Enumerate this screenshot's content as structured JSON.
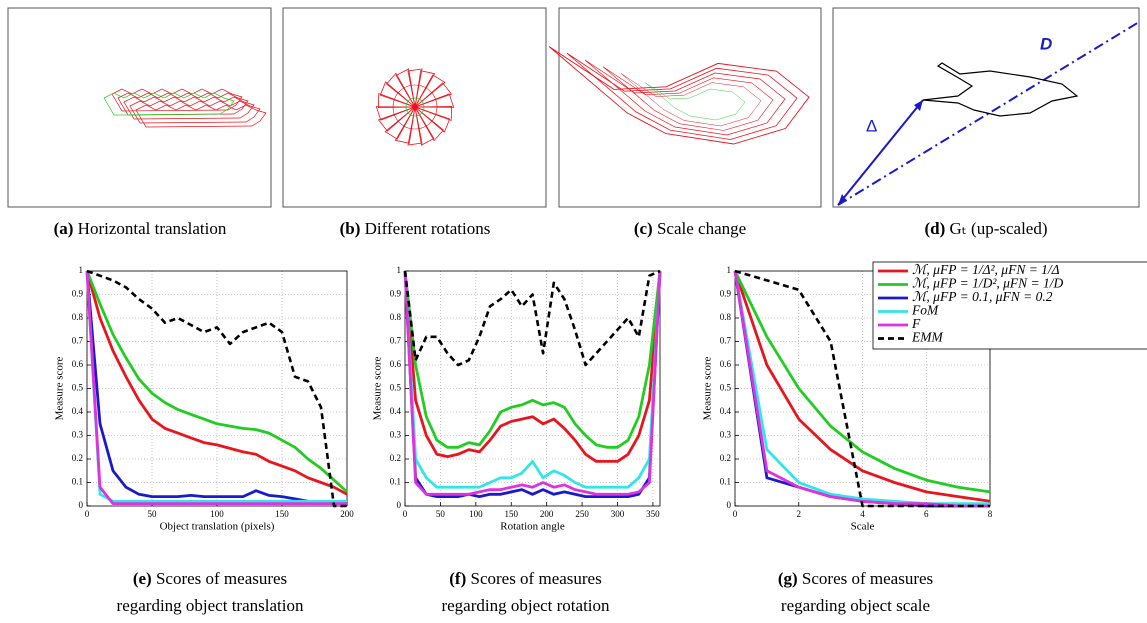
{
  "panels": [
    {
      "label": "(a)",
      "caption": "Horizontal translation"
    },
    {
      "label": "(b)",
      "caption": "Different rotations"
    },
    {
      "label": "(c)",
      "caption": "Scale change"
    },
    {
      "label": "(d)",
      "caption": "Gₜ (up-scaled)",
      "annotations": [
        "D",
        "Δ"
      ]
    }
  ],
  "chart_data": [
    {
      "type": "line",
      "label": "(e)",
      "caption": [
        "Scores of measures",
        "regarding object translation"
      ],
      "xlabel": "Object translation (pixels)",
      "ylabel": "Measure score",
      "x": [
        0,
        10,
        20,
        30,
        40,
        50,
        60,
        70,
        80,
        90,
        100,
        110,
        120,
        130,
        140,
        150,
        160,
        170,
        180,
        190,
        200
      ],
      "xlim": [
        0,
        200
      ],
      "xticks": [
        0,
        50,
        100,
        150,
        200
      ],
      "ylim": [
        0,
        1
      ],
      "yticks": [
        0,
        0.1,
        0.2,
        0.3,
        0.4,
        0.5,
        0.6,
        0.7,
        0.8,
        0.9,
        1
      ],
      "grid": true,
      "series": [
        {
          "color": "#e8141e",
          "values": [
            1,
            0.8,
            0.66,
            0.55,
            0.45,
            0.37,
            0.33,
            0.31,
            0.29,
            0.27,
            0.26,
            0.245,
            0.23,
            0.22,
            0.19,
            0.17,
            0.15,
            0.12,
            0.1,
            0.08,
            0.05
          ]
        },
        {
          "color": "#22cc22",
          "values": [
            1,
            0.86,
            0.73,
            0.63,
            0.54,
            0.48,
            0.44,
            0.41,
            0.39,
            0.37,
            0.35,
            0.34,
            0.33,
            0.325,
            0.31,
            0.28,
            0.25,
            0.2,
            0.16,
            0.11,
            0.06
          ]
        },
        {
          "color": "#1a1acc",
          "values": [
            1,
            0.35,
            0.15,
            0.08,
            0.05,
            0.04,
            0.04,
            0.04,
            0.045,
            0.04,
            0.04,
            0.04,
            0.04,
            0.065,
            0.045,
            0.04,
            0.03,
            0.02,
            0.015,
            0.01,
            0.01
          ]
        },
        {
          "color": "#33e6e6",
          "values": [
            1,
            0.05,
            0.02,
            0.02,
            0.02,
            0.02,
            0.02,
            0.02,
            0.02,
            0.02,
            0.02,
            0.02,
            0.02,
            0.02,
            0.02,
            0.02,
            0.02,
            0.02,
            0.02,
            0.02,
            0.02
          ]
        },
        {
          "color": "#dd33dd",
          "values": [
            1,
            0.08,
            0.01,
            0.01,
            0.01,
            0.01,
            0.01,
            0.01,
            0.01,
            0.01,
            0.01,
            0.01,
            0.01,
            0.01,
            0.01,
            0.01,
            0.01,
            0.01,
            0.01,
            0.01,
            0.01
          ]
        },
        {
          "color": "#000000",
          "dashed": true,
          "values": [
            1,
            0.98,
            0.96,
            0.93,
            0.88,
            0.84,
            0.78,
            0.8,
            0.77,
            0.74,
            0.76,
            0.69,
            0.74,
            0.76,
            0.78,
            0.74,
            0.55,
            0.53,
            0.42,
            0,
            0
          ]
        }
      ]
    },
    {
      "type": "line",
      "label": "(f)",
      "caption": [
        "Scores of measures",
        "regarding object rotation"
      ],
      "xlabel": "Rotation angle",
      "ylabel": "Measure score",
      "x": [
        0,
        15,
        30,
        45,
        60,
        75,
        90,
        105,
        120,
        135,
        150,
        165,
        180,
        195,
        210,
        225,
        240,
        255,
        270,
        285,
        300,
        315,
        330,
        345,
        360
      ],
      "xlim": [
        0,
        360
      ],
      "xticks": [
        0,
        50,
        100,
        150,
        200,
        250,
        300,
        350
      ],
      "ylim": [
        0,
        1
      ],
      "yticks": [
        0,
        0.1,
        0.2,
        0.3,
        0.4,
        0.5,
        0.6,
        0.7,
        0.8,
        0.9,
        1
      ],
      "grid": true,
      "series": [
        {
          "color": "#e8141e",
          "values": [
            1,
            0.45,
            0.3,
            0.22,
            0.21,
            0.22,
            0.24,
            0.23,
            0.28,
            0.34,
            0.36,
            0.37,
            0.38,
            0.35,
            0.37,
            0.33,
            0.28,
            0.22,
            0.19,
            0.19,
            0.19,
            0.22,
            0.3,
            0.45,
            1
          ]
        },
        {
          "color": "#22cc22",
          "values": [
            1,
            0.6,
            0.38,
            0.28,
            0.25,
            0.25,
            0.27,
            0.26,
            0.32,
            0.4,
            0.42,
            0.43,
            0.45,
            0.43,
            0.44,
            0.42,
            0.35,
            0.3,
            0.26,
            0.25,
            0.25,
            0.28,
            0.38,
            0.6,
            1
          ]
        },
        {
          "color": "#1a1acc",
          "values": [
            1,
            0.12,
            0.05,
            0.04,
            0.04,
            0.04,
            0.05,
            0.04,
            0.05,
            0.05,
            0.06,
            0.07,
            0.05,
            0.07,
            0.05,
            0.06,
            0.05,
            0.04,
            0.04,
            0.04,
            0.04,
            0.04,
            0.05,
            0.12,
            1
          ]
        },
        {
          "color": "#33e6e6",
          "values": [
            1,
            0.2,
            0.12,
            0.08,
            0.08,
            0.08,
            0.08,
            0.08,
            0.1,
            0.12,
            0.12,
            0.14,
            0.19,
            0.12,
            0.15,
            0.13,
            0.1,
            0.08,
            0.08,
            0.08,
            0.08,
            0.08,
            0.12,
            0.2,
            1
          ]
        },
        {
          "color": "#dd33dd",
          "values": [
            1,
            0.1,
            0.05,
            0.05,
            0.05,
            0.05,
            0.05,
            0.06,
            0.07,
            0.07,
            0.08,
            0.09,
            0.08,
            0.1,
            0.08,
            0.09,
            0.07,
            0.06,
            0.05,
            0.05,
            0.05,
            0.05,
            0.06,
            0.1,
            1
          ]
        },
        {
          "color": "#000000",
          "dashed": true,
          "values": [
            1,
            0.62,
            0.72,
            0.72,
            0.65,
            0.6,
            0.62,
            0.72,
            0.85,
            0.88,
            0.92,
            0.85,
            0.9,
            0.65,
            0.95,
            0.88,
            0.75,
            0.6,
            0.65,
            0.7,
            0.75,
            0.8,
            0.72,
            0.98,
            1
          ]
        }
      ]
    },
    {
      "type": "line",
      "label": "(g)",
      "caption": [
        "Scores of measures",
        "regarding object scale"
      ],
      "xlabel": "Scale",
      "ylabel": "Measure score",
      "x": [
        0,
        1,
        2,
        3,
        4,
        5,
        6,
        7,
        8
      ],
      "xlim": [
        0,
        8
      ],
      "xticks": [
        0,
        2,
        4,
        6,
        8
      ],
      "ylim": [
        0,
        1
      ],
      "yticks": [
        0,
        0.1,
        0.2,
        0.3,
        0.4,
        0.5,
        0.6,
        0.7,
        0.8,
        0.9,
        1
      ],
      "grid": true,
      "legend": "top-right",
      "series": [
        {
          "name": "ℳ,  μFP = 1/Δ²,  μFN = 1/Δ",
          "color": "#e8141e",
          "values": [
            1,
            0.6,
            0.37,
            0.24,
            0.15,
            0.1,
            0.06,
            0.04,
            0.02
          ]
        },
        {
          "name": "ℳ,  μFP = 1/D²,  μFN = 1/D",
          "color": "#22cc22",
          "values": [
            1,
            0.72,
            0.5,
            0.34,
            0.23,
            0.16,
            0.11,
            0.08,
            0.06
          ]
        },
        {
          "name": "ℳ,  μFP = 0.1,  μFN = 0.2",
          "color": "#1a1acc",
          "values": [
            1,
            0.12,
            0.08,
            0.04,
            0.02,
            0.01,
            0,
            0,
            0
          ]
        },
        {
          "name": "FoM",
          "color": "#33e6e6",
          "values": [
            1,
            0.24,
            0.1,
            0.05,
            0.03,
            0.02,
            0.01,
            0.01,
            0.01
          ]
        },
        {
          "name": "F",
          "color": "#dd33dd",
          "values": [
            1,
            0.15,
            0.08,
            0.04,
            0.02,
            0.01,
            0.01,
            0,
            0
          ]
        },
        {
          "name": "EMM",
          "color": "#000000",
          "dashed": true,
          "values": [
            1,
            0.96,
            0.92,
            0.7,
            0,
            0,
            0,
            0,
            0
          ]
        }
      ]
    }
  ]
}
